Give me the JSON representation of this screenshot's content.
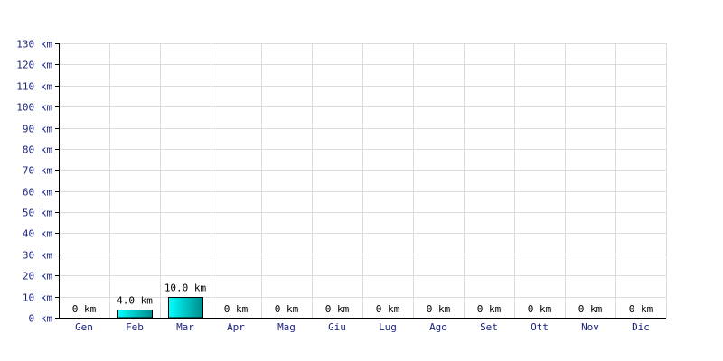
{
  "chart_data": {
    "type": "bar",
    "categories": [
      "Gen",
      "Feb",
      "Mar",
      "Apr",
      "Mag",
      "Giu",
      "Lug",
      "Ago",
      "Set",
      "Ott",
      "Nov",
      "Dic"
    ],
    "values": [
      0,
      4.0,
      10.0,
      0,
      0,
      0,
      0,
      0,
      0,
      0,
      0,
      0
    ],
    "data_labels": [
      "0 km",
      "4.0 km",
      "10.0 km",
      "0 km",
      "0 km",
      "0 km",
      "0 km",
      "0 km",
      "0 km",
      "0 km",
      "0 km",
      "0 km"
    ],
    "yticks": [
      0,
      10,
      20,
      30,
      40,
      50,
      60,
      70,
      80,
      90,
      100,
      110,
      120,
      130
    ],
    "ytick_labels": [
      "0 km",
      "10 km",
      "20 km",
      "30 km",
      "40 km",
      "50 km",
      "60 km",
      "70 km",
      "80 km",
      "90 km",
      "100 km",
      "110 km",
      "120 km",
      "130 km"
    ],
    "ylim": [
      0,
      130
    ],
    "title": "",
    "xlabel": "",
    "ylabel": "",
    "grid": true,
    "legend": "none",
    "colors": {
      "bar_light": "#00ffff",
      "bar_dark": "#008b8b",
      "tick_text": "#1a237e",
      "grid": "#dcdcdc"
    }
  }
}
